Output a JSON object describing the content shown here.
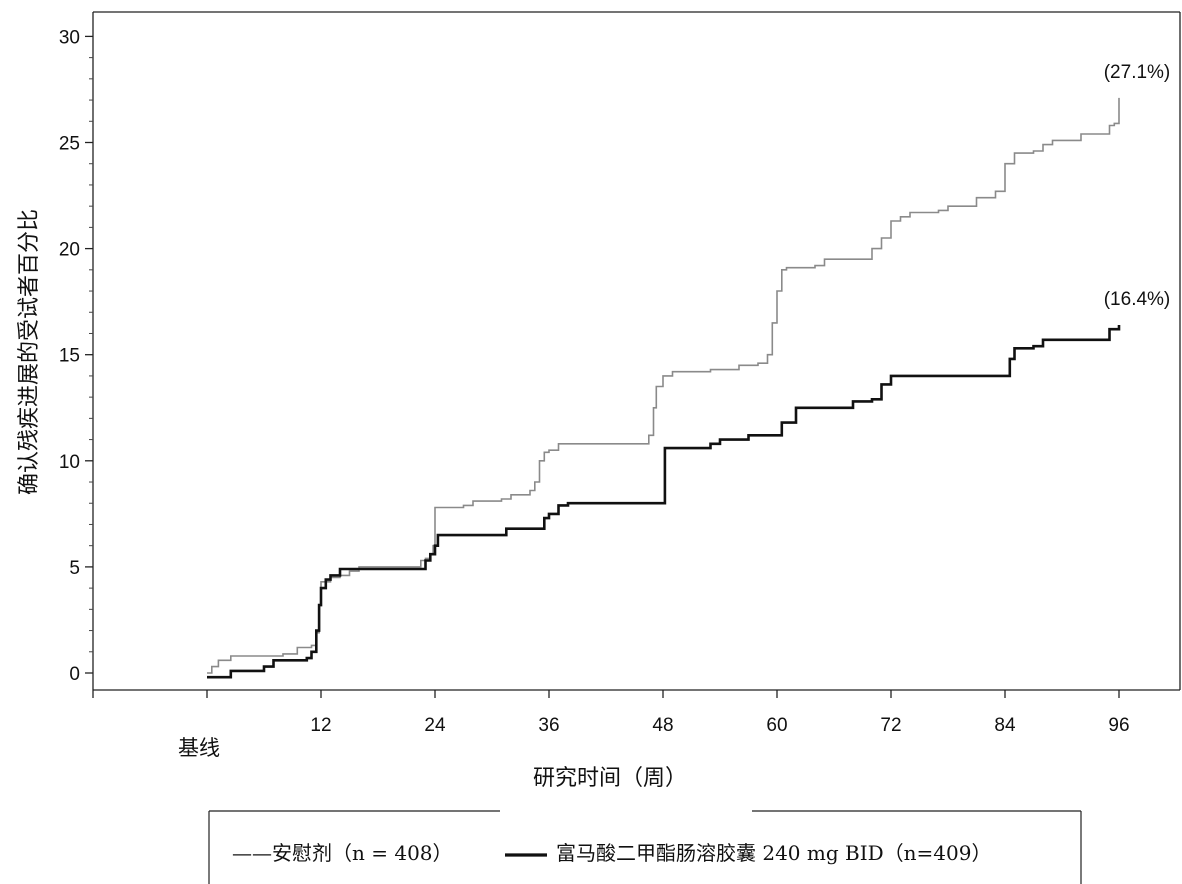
{
  "chart_data": {
    "type": "line",
    "title": "",
    "xlabel": "研究时间（周）",
    "ylabel": "确认残疾进展的受试者百分比",
    "x_ticks": [
      12,
      24,
      36,
      48,
      60,
      72,
      84,
      96
    ],
    "x_baseline_label": "基线",
    "y_ticks": [
      0,
      5,
      10,
      15,
      20,
      25,
      30
    ],
    "xlim": [
      -10,
      100
    ],
    "ylim": [
      -1,
      31
    ],
    "grid": false,
    "legend_position": "bottom",
    "series": [
      {
        "name": "安慰剂（n = 408）",
        "color": "#8a8a8a",
        "end_label": "(27.1%)",
        "points": [
          [
            0,
            0
          ],
          [
            0.5,
            0.3
          ],
          [
            1.2,
            0.6
          ],
          [
            2.5,
            0.8
          ],
          [
            8,
            0.9
          ],
          [
            9.5,
            1.2
          ],
          [
            11,
            1.3
          ],
          [
            11.5,
            1.9
          ],
          [
            11.8,
            3.2
          ],
          [
            12,
            4.3
          ],
          [
            13,
            4.5
          ],
          [
            14,
            4.6
          ],
          [
            15,
            4.8
          ],
          [
            16,
            5.0
          ],
          [
            22,
            5.0
          ],
          [
            22.5,
            5.3
          ],
          [
            23,
            5.4
          ],
          [
            23.5,
            5.6
          ],
          [
            23.8,
            6.0
          ],
          [
            24,
            7.8
          ],
          [
            27,
            7.9
          ],
          [
            28,
            8.1
          ],
          [
            31,
            8.2
          ],
          [
            32,
            8.4
          ],
          [
            34,
            8.6
          ],
          [
            34.5,
            9.0
          ],
          [
            35,
            10.0
          ],
          [
            35.5,
            10.4
          ],
          [
            36,
            10.5
          ],
          [
            37,
            10.8
          ],
          [
            46,
            10.8
          ],
          [
            46.5,
            11.2
          ],
          [
            47,
            12.5
          ],
          [
            47.3,
            13.5
          ],
          [
            48,
            14.0
          ],
          [
            49,
            14.2
          ],
          [
            53,
            14.3
          ],
          [
            56,
            14.5
          ],
          [
            58,
            14.6
          ],
          [
            59,
            15.0
          ],
          [
            59.5,
            16.5
          ],
          [
            60,
            18.0
          ],
          [
            60.5,
            19.0
          ],
          [
            61,
            19.1
          ],
          [
            64,
            19.2
          ],
          [
            65,
            19.5
          ],
          [
            69,
            19.5
          ],
          [
            70,
            20.0
          ],
          [
            71,
            20.5
          ],
          [
            72,
            21.3
          ],
          [
            73,
            21.5
          ],
          [
            74,
            21.7
          ],
          [
            77,
            21.8
          ],
          [
            78,
            22.0
          ],
          [
            81,
            22.4
          ],
          [
            83,
            22.7
          ],
          [
            84,
            24.0
          ],
          [
            85,
            24.5
          ],
          [
            87,
            24.6
          ],
          [
            88,
            24.9
          ],
          [
            89,
            25.1
          ],
          [
            92,
            25.4
          ],
          [
            95,
            25.8
          ],
          [
            95.5,
            25.9
          ],
          [
            96,
            27.1
          ]
        ]
      },
      {
        "name": "富马酸二甲酯肠溶胶囊 240 mg BID（n=409）",
        "color": "#111111",
        "end_label": "(16.4%)",
        "points": [
          [
            0,
            -0.2
          ],
          [
            1.5,
            -0.2
          ],
          [
            2.5,
            0.1
          ],
          [
            6,
            0.3
          ],
          [
            7,
            0.6
          ],
          [
            10,
            0.6
          ],
          [
            10.5,
            0.7
          ],
          [
            11,
            1.0
          ],
          [
            11.5,
            2.0
          ],
          [
            11.8,
            3.2
          ],
          [
            12,
            4.0
          ],
          [
            12.5,
            4.4
          ],
          [
            13,
            4.6
          ],
          [
            14,
            4.9
          ],
          [
            22,
            4.9
          ],
          [
            23,
            5.3
          ],
          [
            23.5,
            5.6
          ],
          [
            24,
            6.0
          ],
          [
            24.3,
            6.5
          ],
          [
            31,
            6.5
          ],
          [
            31.5,
            6.8
          ],
          [
            35,
            6.8
          ],
          [
            35.5,
            7.3
          ],
          [
            36,
            7.5
          ],
          [
            37,
            7.9
          ],
          [
            38,
            8.0
          ],
          [
            48,
            8.0
          ],
          [
            48.2,
            10.6
          ],
          [
            53,
            10.8
          ],
          [
            54,
            11.0
          ],
          [
            57,
            11.2
          ],
          [
            60,
            11.2
          ],
          [
            60.5,
            11.8
          ],
          [
            62,
            12.5
          ],
          [
            67,
            12.5
          ],
          [
            68,
            12.8
          ],
          [
            70,
            12.9
          ],
          [
            71,
            13.6
          ],
          [
            72,
            14.0
          ],
          [
            78,
            14.0
          ],
          [
            84,
            14.0
          ],
          [
            84.5,
            14.8
          ],
          [
            85,
            15.3
          ],
          [
            87,
            15.4
          ],
          [
            88,
            15.7
          ],
          [
            94,
            15.7
          ],
          [
            95,
            16.2
          ],
          [
            96,
            16.4
          ]
        ]
      }
    ]
  },
  "legend": {
    "placebo_label": "——安慰剂（n = 408）",
    "treatment_label": "富马酸二甲酯肠溶胶囊  240 mg BID（n=409）"
  }
}
